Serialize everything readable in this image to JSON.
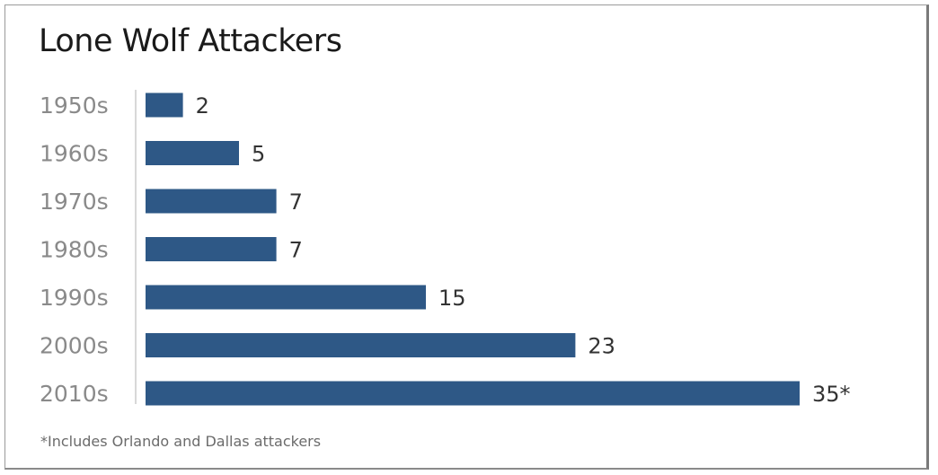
{
  "title": "Lone Wolf Attackers",
  "footnote": "*Includes Orlando and Dallas attackers",
  "colors": {
    "bar": "#2e5886",
    "category_label": "#8a8a8a",
    "value_label": "#333333",
    "axis": "#d8d8d8"
  },
  "chart_data": {
    "type": "bar",
    "orientation": "horizontal",
    "title": "Lone Wolf Attackers",
    "categories": [
      "1950s",
      "1960s",
      "1970s",
      "1980s",
      "1990s",
      "2000s",
      "2010s"
    ],
    "values": [
      2,
      5,
      7,
      7,
      15,
      23,
      35
    ],
    "value_labels": [
      "2",
      "5",
      "7",
      "7",
      "15",
      "23",
      "35*"
    ],
    "xlabel": "",
    "ylabel": "",
    "xlim": [
      0,
      35
    ],
    "grid": false,
    "legend": "none"
  }
}
